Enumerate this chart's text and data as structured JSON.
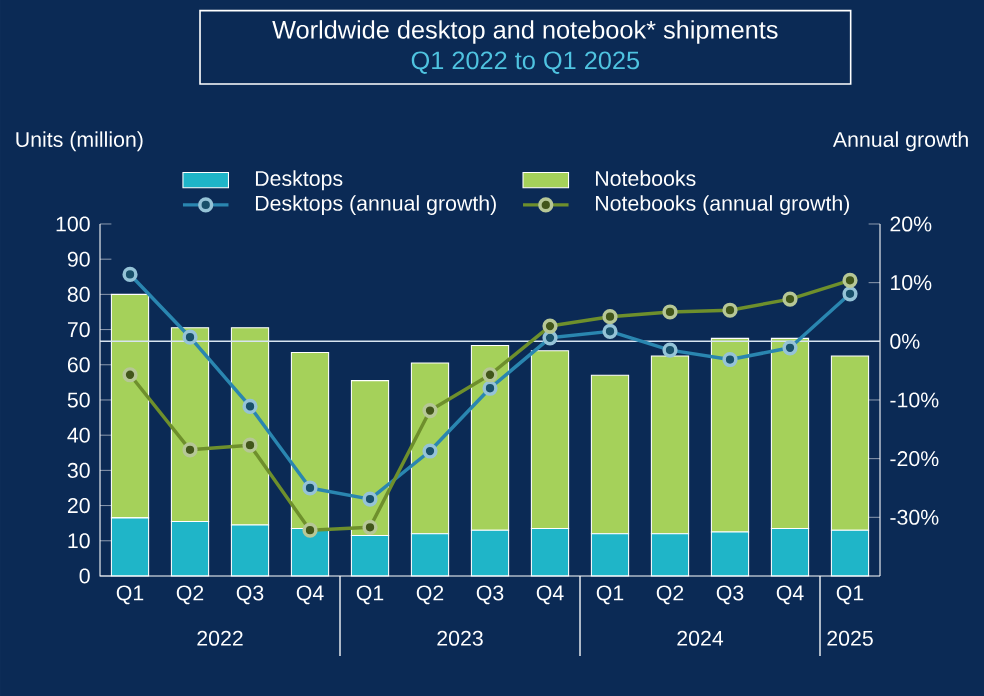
{
  "chart_data": {
    "type": "bar",
    "stacked": true,
    "title": "Worldwide desktop and notebook* shipments",
    "subtitle": "Q1 2022 to Q1 2025",
    "ylabel": "Units (million)",
    "y2label": "Annual growth",
    "categories": [
      "Q1",
      "Q2",
      "Q3",
      "Q4",
      "Q1",
      "Q2",
      "Q3",
      "Q4",
      "Q1",
      "Q2",
      "Q3",
      "Q4",
      "Q1"
    ],
    "annotations": [
      "2022",
      "2023",
      "2024",
      "2025"
    ],
    "ylim": [
      0,
      100
    ],
    "yticks": [
      0,
      10,
      20,
      30,
      40,
      50,
      60,
      70,
      80,
      90,
      100
    ],
    "y2lim": [
      -40,
      20
    ],
    "y2ticks": [
      {
        "value": -30,
        "label": "-30%"
      },
      {
        "value": -20,
        "label": "-20%"
      },
      {
        "value": -10,
        "label": "-10%"
      },
      {
        "value": 0,
        "label": "0%"
      },
      {
        "value": 10,
        "label": "10%"
      },
      {
        "value": 20,
        "label": "20%"
      }
    ],
    "legend": "top",
    "marker": "circle",
    "ref_lines": [
      {
        "axis": "y2",
        "value": 0,
        "color": "#d8e4f0"
      }
    ],
    "series": [
      {
        "name": "Desktops",
        "color": "#1fb5c8",
        "values": [
          16.5,
          15.5,
          14.5,
          13.5,
          11.5,
          12,
          13,
          13.5,
          12,
          12,
          12.5,
          13.5,
          13
        ]
      },
      {
        "name": "Notebooks",
        "color": "#a5d15a",
        "values": [
          63.5,
          55,
          56,
          50,
          44,
          48.5,
          52.5,
          50.5,
          45,
          50.5,
          55,
          54,
          49.5
        ]
      },
      {
        "name": "Desktops (annual growth)",
        "type": "line",
        "axis": "y2",
        "color": "#2a86b0",
        "values": [
          11.4,
          0.7,
          -11.1,
          -25,
          -26.9,
          -18.7,
          -8,
          0.6,
          1.7,
          -1.5,
          -3.1,
          -1.1,
          8.1
        ]
      },
      {
        "name": "Notebooks (annual growth)",
        "type": "line",
        "axis": "y2",
        "color": "#6e8f2c",
        "values": [
          -5.7,
          -18.5,
          -17.7,
          -32.2,
          -31.7,
          -11.8,
          -5.7,
          2.6,
          4.2,
          5,
          5.3,
          7.2,
          10.4
        ]
      }
    ]
  }
}
